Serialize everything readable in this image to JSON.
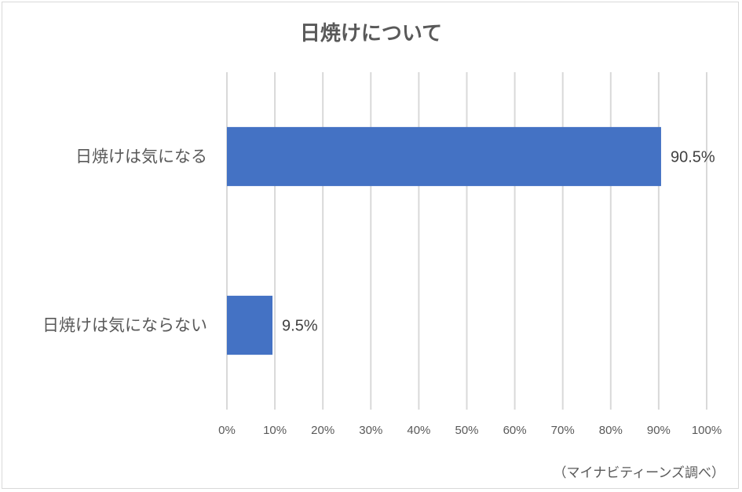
{
  "chart_data": {
    "type": "bar",
    "orientation": "horizontal",
    "title": "日焼けについて",
    "categories": [
      "日焼けは気になる",
      "日焼けは気にならない"
    ],
    "values": [
      90.5,
      9.5
    ],
    "data_labels": [
      "90.5%",
      "9.5%"
    ],
    "xlim": [
      0,
      100
    ],
    "x_ticks": [
      "0%",
      "10%",
      "20%",
      "30%",
      "40%",
      "50%",
      "60%",
      "70%",
      "80%",
      "90%",
      "100%"
    ],
    "grid": "vertical",
    "legend": "none",
    "bar_color": "#4472c4",
    "gridline_color": "#d9d9d9"
  },
  "footer": {
    "source": "（マイナビティーンズ調べ）"
  }
}
